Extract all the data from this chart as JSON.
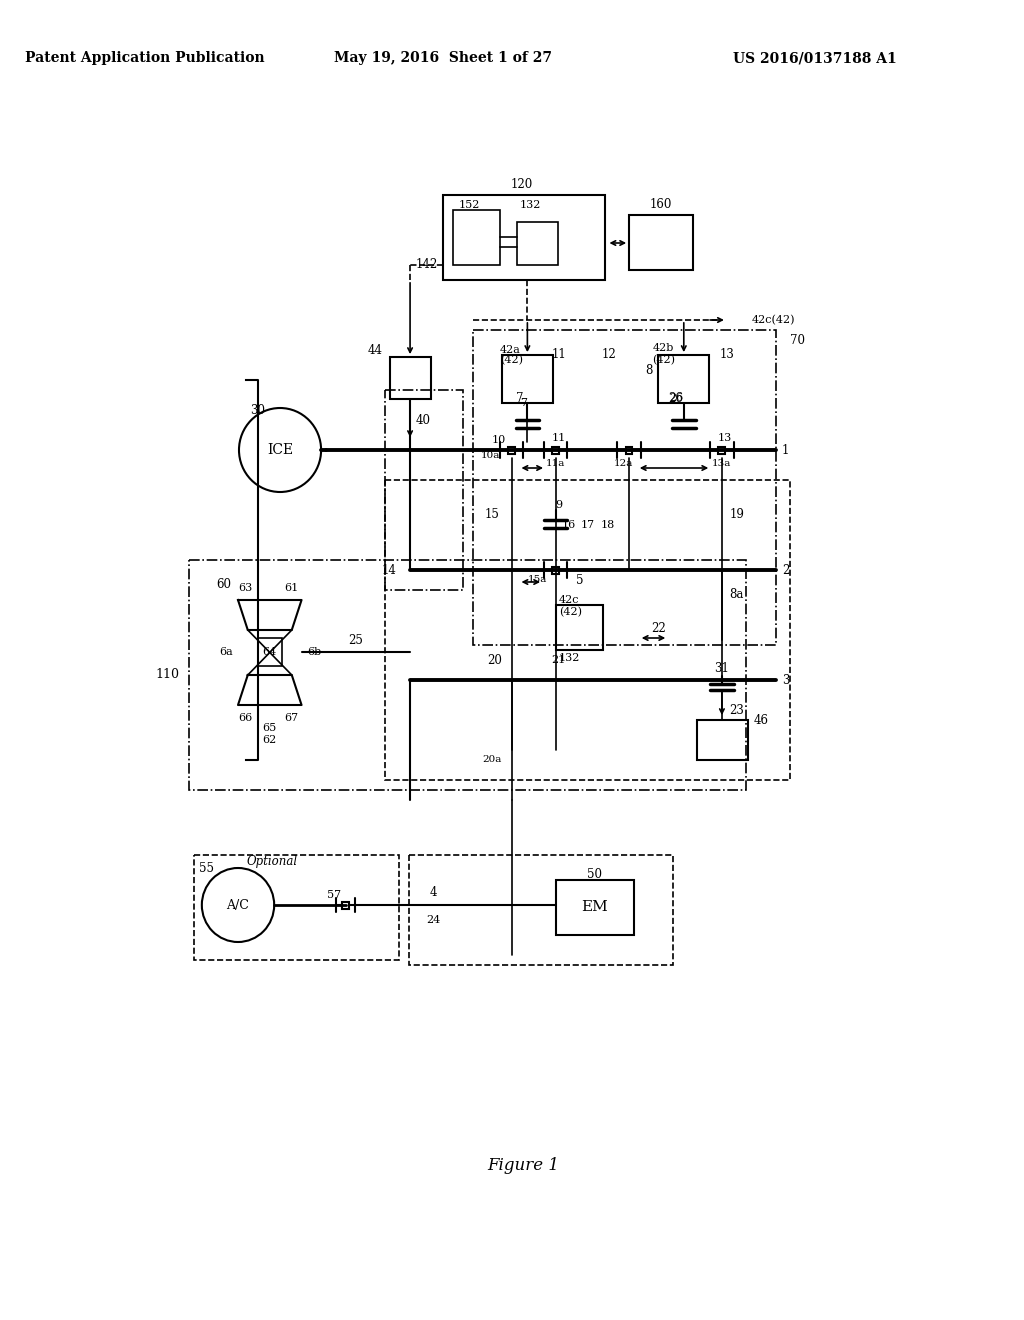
{
  "title_left": "Patent Application Publication",
  "title_center": "May 19, 2016  Sheet 1 of 27",
  "title_right": "US 2016/0137188 A1",
  "figure_caption": "Figure 1",
  "bg_color": "#ffffff"
}
